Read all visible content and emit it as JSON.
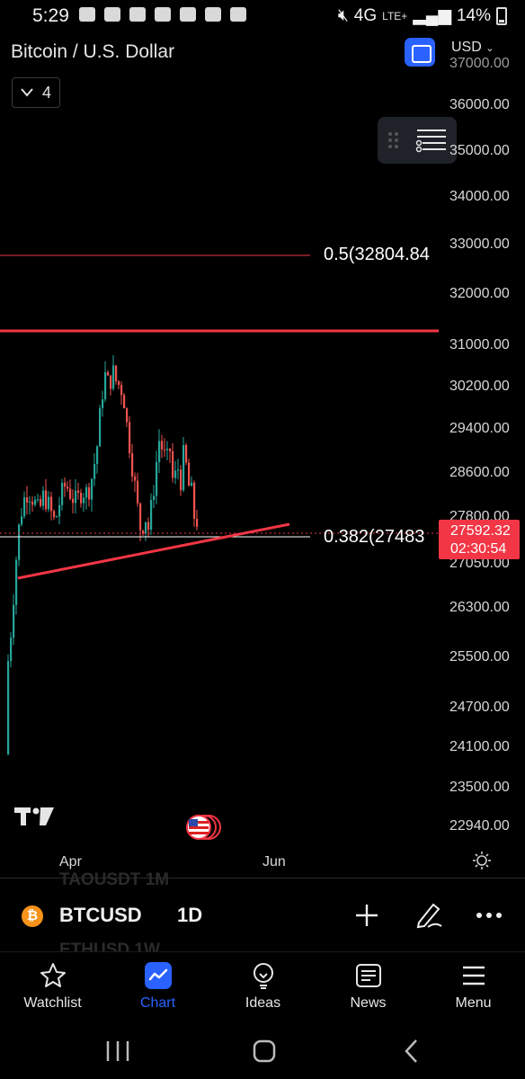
{
  "status_bar": {
    "time": "5:29",
    "network": "4G",
    "network_sub": "LTE+",
    "battery": "14%"
  },
  "header": {
    "title": "Bitcoin / U.S. Dollar",
    "currency": "USD",
    "collapse_count": "4"
  },
  "price_axis": {
    "partial_top": "37000.00",
    "ticks": [
      "36000.00",
      "35000.00",
      "34000.00",
      "33000.00",
      "32000.00",
      "31000.00",
      "30200.00",
      "29400.00",
      "28600.00",
      "27800.00",
      "27050.00",
      "26300.00",
      "25500.00",
      "24700.00",
      "24100.00",
      "23500.00",
      "22940.00"
    ]
  },
  "fib_levels": [
    {
      "label": "0.5(32804.84",
      "color": "#f23645"
    },
    {
      "label": "0.382(27483",
      "color": "#ffffff"
    }
  ],
  "current_price": {
    "price": "27592.32",
    "countdown": "02:30:54",
    "color": "#f23645"
  },
  "time_axis": [
    "Apr",
    "Jun"
  ],
  "symbol_bar": {
    "ghost_above": "TAOUSDT   1M",
    "symbol": "BTCUSD",
    "interval": "1D",
    "ghost_below": "ETHUSD   1W",
    "coin_glyph": "₿"
  },
  "bottom_nav": [
    {
      "label": "Watchlist",
      "icon": "star-icon"
    },
    {
      "label": "Chart",
      "icon": "chart-icon",
      "active": true
    },
    {
      "label": "Ideas",
      "icon": "lightbulb-icon"
    },
    {
      "label": "News",
      "icon": "newspaper-icon"
    },
    {
      "label": "Menu",
      "icon": "hamburger-icon"
    }
  ],
  "colors": {
    "accent": "#2962ff",
    "bull": "#26a69a",
    "bear": "#ef5350",
    "drawing": "#f23645"
  }
}
